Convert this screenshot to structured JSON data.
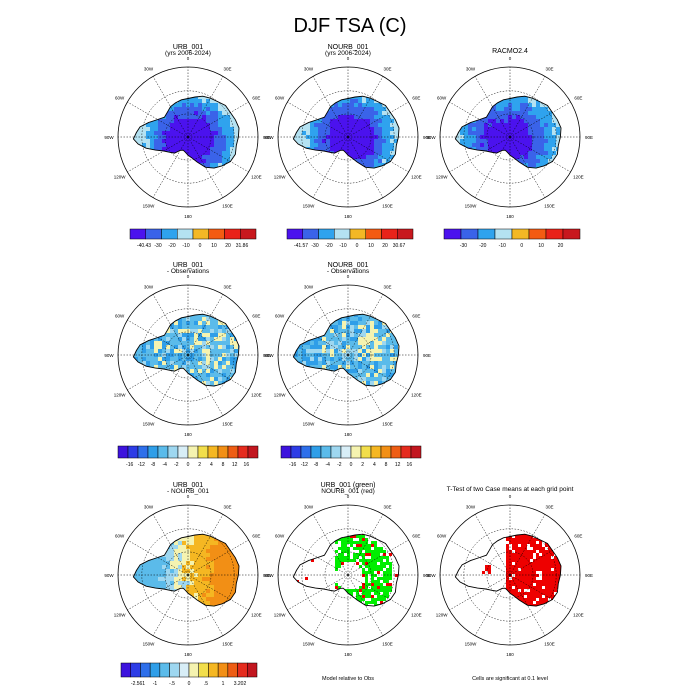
{
  "page": {
    "title": "DJF TSA (C)"
  },
  "colors": {
    "abs": [
      "#4b12ee",
      "#3a63e9",
      "#2fa3ee",
      "#b4e2f2",
      "#f3b825",
      "#f35b12",
      "#e92219",
      "#c8181e"
    ],
    "diff": [
      "#3d13dd",
      "#2d3ce6",
      "#2e6fea",
      "#2f9ee8",
      "#5bbbea",
      "#9ed7f0",
      "#d8eef7",
      "#f5f3b0",
      "#f2de4b",
      "#f5b722",
      "#f28f15",
      "#ee5d14",
      "#e52b1e",
      "#c2161f"
    ],
    "sig_red": "#ee0000",
    "sig_green": "#00ee00",
    "land_base": "#1a9de8"
  },
  "chart_data": [
    {
      "type": "heatmap",
      "panel": "r1c1",
      "title": "URB_001",
      "subtitle": "(yrs 2006-2024)",
      "colorbar": {
        "labels": [
          "-40.43",
          "-30",
          "-20",
          "-10",
          "0",
          "10",
          "20",
          "31.86"
        ],
        "colors_key": "abs"
      },
      "map_labels": [
        "30W",
        "0",
        "30E",
        "60W",
        "60E",
        "90W",
        "90E",
        "120W",
        "120E",
        "150W",
        "150E",
        "180"
      ]
    },
    {
      "type": "heatmap",
      "panel": "r1c2",
      "title": "NOURB_001",
      "subtitle": "(yrs 2006-2024)",
      "colorbar": {
        "labels": [
          "-41.57",
          "-30",
          "-20",
          "-10",
          "0",
          "10",
          "20",
          "30.67"
        ],
        "colors_key": "abs"
      },
      "map_labels": [
        "30W",
        "0",
        "30E",
        "60W",
        "60E",
        "90W",
        "90E",
        "120W",
        "120E",
        "150W",
        "150E",
        "180"
      ]
    },
    {
      "type": "heatmap",
      "panel": "r1c3",
      "title": "RACMO2.4",
      "subtitle": "",
      "colorbar": {
        "labels": [
          "-30",
          "-20",
          "-10",
          "0",
          "10",
          "20"
        ],
        "colors_key": "abs"
      },
      "map_labels": [
        "30W",
        "0",
        "30E",
        "60W",
        "60E",
        "90W",
        "90E",
        "120W",
        "120E",
        "150W",
        "150E",
        "180"
      ]
    },
    {
      "type": "heatmap",
      "panel": "r2c1",
      "title": "URB_001",
      "subtitle": "- Observations",
      "colorbar": {
        "labels": [
          "-16",
          "-12",
          "-8",
          "-4",
          "-2",
          "0",
          "2",
          "4",
          "8",
          "12",
          "16"
        ],
        "colors_key": "diff"
      },
      "map_labels": [
        "30W",
        "0",
        "30E",
        "60W",
        "60E",
        "90W",
        "90E",
        "120W",
        "120E",
        "150W",
        "150E",
        "180"
      ]
    },
    {
      "type": "heatmap",
      "panel": "r2c2",
      "title": "NOURB_001",
      "subtitle": "- Observations",
      "colorbar": {
        "labels": [
          "-16",
          "-12",
          "-8",
          "-4",
          "-2",
          "0",
          "2",
          "4",
          "8",
          "12",
          "16"
        ],
        "colors_key": "diff"
      },
      "map_labels": [
        "30W",
        "0",
        "30E",
        "60W",
        "60E",
        "90W",
        "90E",
        "120W",
        "120E",
        "150W",
        "150E",
        "180"
      ]
    },
    {
      "type": "heatmap",
      "panel": "r3c1",
      "title": "URB_001",
      "subtitle": "- NOURB_001",
      "colorbar": {
        "labels": [
          "-2.561",
          "-1",
          "-.5",
          "0",
          ".5",
          "1",
          "3.202"
        ],
        "colors_key": "diff"
      },
      "map_labels": [
        "30W",
        "0",
        "30E",
        "60W",
        "60E",
        "90W",
        "90E",
        "120W",
        "120E",
        "150W",
        "150E",
        "180"
      ]
    },
    {
      "type": "heatmap",
      "panel": "r3c2",
      "title": "URB_001 (green)",
      "subtitle": "NOURB_001 (red)",
      "footer": "Model relative to Obs",
      "map_labels": [
        "30W",
        "0",
        "30E",
        "60W",
        "60E",
        "90W",
        "90E",
        "120W",
        "120E",
        "150W",
        "150E",
        "180"
      ]
    },
    {
      "type": "heatmap",
      "panel": "r3c3",
      "title": "T-Test of two Case means at each grid point",
      "subtitle": "",
      "footer": "Cells are significant at 0.1 level",
      "map_labels": [
        "30W",
        "0",
        "30E",
        "60W",
        "60E",
        "90W",
        "90E",
        "120W",
        "120E",
        "150W",
        "150E",
        "180"
      ]
    }
  ]
}
